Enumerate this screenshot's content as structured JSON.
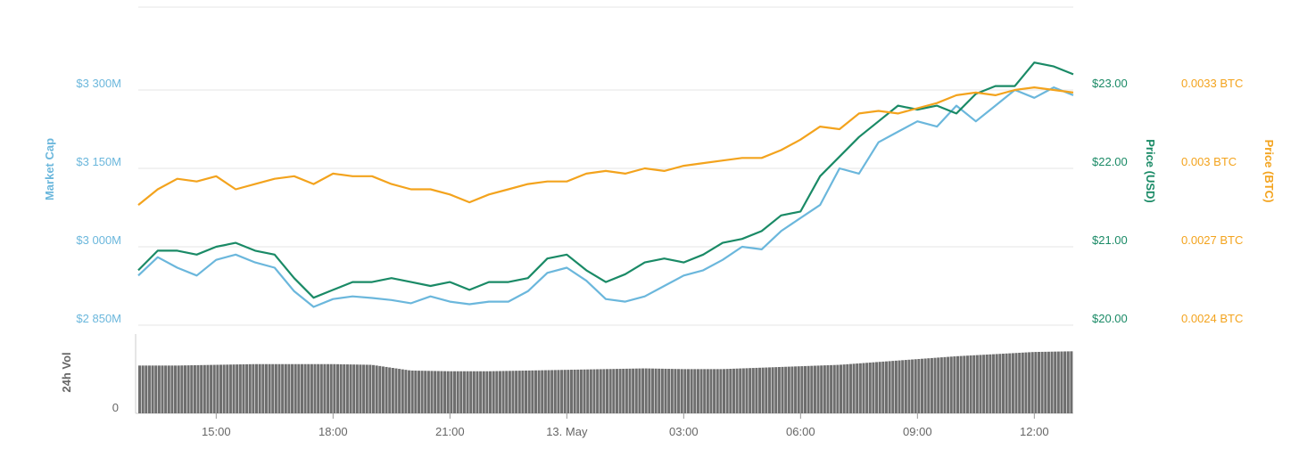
{
  "chart_data": {
    "type": "line",
    "x_ticks": [
      "15:00",
      "18:00",
      "21:00",
      "13. May",
      "03:00",
      "06:00",
      "09:00",
      "12:00"
    ],
    "axes": {
      "market_cap": {
        "label": "Market Cap",
        "ticks": [
          "$3 300M",
          "$3 150M",
          "$3 000M",
          "$2 850M"
        ],
        "tick_values": [
          3300,
          3150,
          3000,
          2850
        ],
        "unit": "M USD",
        "color": "#6bb7dc"
      },
      "price_usd": {
        "label": "Price (USD)",
        "ticks": [
          "$23.00",
          "$22.00",
          "$21.00",
          "$20.00"
        ],
        "tick_values": [
          23,
          22,
          21,
          20
        ],
        "color": "#1a8a66"
      },
      "price_btc": {
        "label": "Price (BTC)",
        "ticks": [
          "0.0033 BTC",
          "0.003 BTC",
          "0.0027 BTC",
          "0.0024 BTC"
        ],
        "tick_values": [
          0.0033,
          0.003,
          0.0027,
          0.0024
        ],
        "color": "#f3a31d"
      },
      "volume": {
        "label": "24h Vol",
        "ticks": [
          "0"
        ],
        "color": "#555555"
      }
    },
    "x_range_hours": [
      0,
      24
    ],
    "series": [
      {
        "name": "Market Cap",
        "axis": "market_cap",
        "color": "#6bb7dc",
        "x": [
          0,
          0.5,
          1,
          1.5,
          2,
          2.5,
          3,
          3.5,
          4,
          4.5,
          5,
          5.5,
          6,
          6.5,
          7,
          7.5,
          8,
          8.5,
          9,
          9.5,
          10,
          10.5,
          11,
          11.5,
          12,
          12.5,
          13,
          13.5,
          14,
          14.5,
          15,
          15.5,
          16,
          16.5,
          17,
          17.5,
          18,
          18.5,
          19,
          19.5,
          20,
          20.5,
          21,
          21.5,
          22,
          22.5,
          23,
          23.5,
          24
        ],
        "values": [
          2945,
          2980,
          2960,
          2945,
          2975,
          2985,
          2970,
          2960,
          2915,
          2885,
          2900,
          2905,
          2902,
          2898,
          2892,
          2905,
          2895,
          2890,
          2895,
          2895,
          2915,
          2950,
          2960,
          2935,
          2900,
          2895,
          2905,
          2925,
          2945,
          2955,
          2975,
          3000,
          2995,
          3030,
          3055,
          3080,
          3150,
          3140,
          3200,
          3220,
          3240,
          3230,
          3270,
          3240,
          3270,
          3300,
          3285,
          3305,
          3290
        ]
      },
      {
        "name": "Price (USD)",
        "axis": "price_usd",
        "color": "#1a8a66",
        "x": [
          0,
          0.5,
          1,
          1.5,
          2,
          2.5,
          3,
          3.5,
          4,
          4.5,
          5,
          5.5,
          6,
          6.5,
          7,
          7.5,
          8,
          8.5,
          9,
          9.5,
          10,
          10.5,
          11,
          11.5,
          12,
          12.5,
          13,
          13.5,
          14,
          14.5,
          15,
          15.5,
          16,
          16.5,
          17,
          17.5,
          18,
          18.5,
          19,
          19.5,
          20,
          20.5,
          21,
          21.5,
          22,
          22.5,
          23,
          23.5,
          24
        ],
        "values": [
          20.7,
          20.95,
          20.95,
          20.9,
          21.0,
          21.05,
          20.95,
          20.9,
          20.6,
          20.35,
          20.45,
          20.55,
          20.55,
          20.6,
          20.55,
          20.5,
          20.55,
          20.45,
          20.55,
          20.55,
          20.6,
          20.85,
          20.9,
          20.7,
          20.55,
          20.65,
          20.8,
          20.85,
          20.8,
          20.9,
          21.05,
          21.1,
          21.2,
          21.4,
          21.45,
          21.9,
          22.15,
          22.4,
          22.6,
          22.8,
          22.75,
          22.8,
          22.7,
          22.95,
          23.05,
          23.05,
          23.35,
          23.3,
          23.2
        ]
      },
      {
        "name": "Price (BTC)",
        "axis": "price_btc",
        "color": "#f3a31d",
        "x": [
          0,
          0.5,
          1,
          1.5,
          2,
          2.5,
          3,
          3.5,
          4,
          4.5,
          5,
          5.5,
          6,
          6.5,
          7,
          7.5,
          8,
          8.5,
          9,
          9.5,
          10,
          10.5,
          11,
          11.5,
          12,
          12.5,
          13,
          13.5,
          14,
          14.5,
          15,
          15.5,
          16,
          16.5,
          17,
          17.5,
          18,
          18.5,
          19,
          19.5,
          20,
          20.5,
          21,
          21.5,
          22,
          22.5,
          23,
          23.5,
          24
        ],
        "values": [
          0.00286,
          0.00292,
          0.00296,
          0.00295,
          0.00297,
          0.00292,
          0.00294,
          0.00296,
          0.00297,
          0.00294,
          0.00298,
          0.00297,
          0.00297,
          0.00294,
          0.00292,
          0.00292,
          0.0029,
          0.00287,
          0.0029,
          0.00292,
          0.00294,
          0.00295,
          0.00295,
          0.00298,
          0.00299,
          0.00298,
          0.003,
          0.00299,
          0.00301,
          0.00302,
          0.00303,
          0.00304,
          0.00304,
          0.00307,
          0.00311,
          0.00316,
          0.00315,
          0.00321,
          0.00322,
          0.00321,
          0.00323,
          0.00325,
          0.00328,
          0.00329,
          0.00328,
          0.0033,
          0.00331,
          0.0033,
          0.00329
        ]
      },
      {
        "name": "24h Vol",
        "axis": "volume",
        "type": "bar",
        "color": "#6e6e6e",
        "note_scale": "relative",
        "x": [
          0,
          1,
          2,
          3,
          4,
          5,
          6,
          7,
          8,
          9,
          10,
          11,
          12,
          13,
          14,
          15,
          16,
          17,
          18,
          19,
          20,
          21,
          22,
          23,
          24
        ],
        "values": [
          0.67,
          0.67,
          0.68,
          0.69,
          0.69,
          0.69,
          0.68,
          0.6,
          0.59,
          0.59,
          0.6,
          0.61,
          0.62,
          0.63,
          0.62,
          0.62,
          0.64,
          0.66,
          0.68,
          0.72,
          0.76,
          0.8,
          0.83,
          0.86,
          0.87
        ]
      }
    ],
    "grid": true,
    "legend": "none"
  }
}
